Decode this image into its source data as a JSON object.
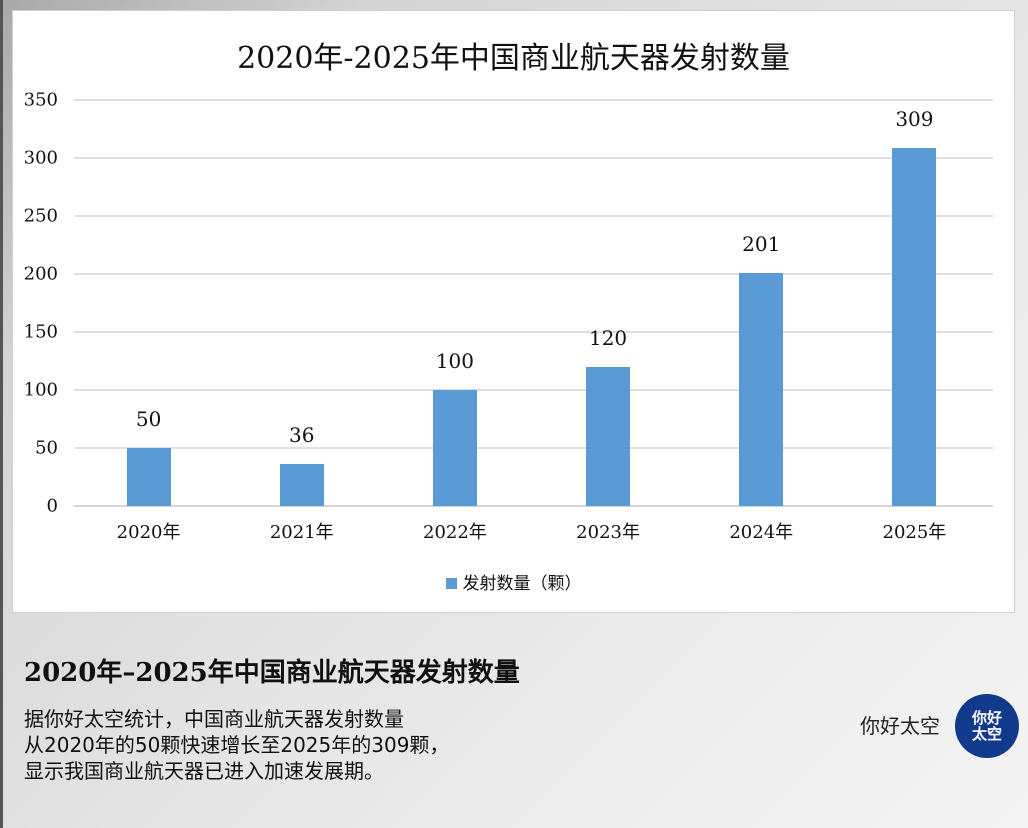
{
  "colors": {
    "bar": "#5b9bd5",
    "gridline": "#e0e0e0",
    "logo_bg": "#123a8c"
  },
  "chart": {
    "title": "2020年-2025年中国商业航天器发射数量",
    "legend_label": "发射数量（颗）"
  },
  "caption": {
    "title": "2020年–2025年中国商业航天器发射数量",
    "lines": [
      "据你好太空统计，中国商业航天器发射数量",
      "从2020年的50颗快速增长至2025年的309颗，",
      "显示我国商业航天器已进入加速发展期。"
    ]
  },
  "brand": {
    "name": "你好太空",
    "logo_line1": "你好",
    "logo_line2": "太空",
    "logo_icon": "nihao-taikong-logo-icon"
  },
  "chart_data": {
    "type": "bar",
    "title": "2020年-2025年中国商业航天器发射数量",
    "categories": [
      "2020年",
      "2021年",
      "2022年",
      "2023年",
      "2024年",
      "2025年"
    ],
    "series": [
      {
        "name": "发射数量（颗）",
        "values": [
          50,
          36,
          100,
          120,
          201,
          309
        ],
        "color": "#5b9bd5"
      }
    ],
    "xlabel": "",
    "ylabel": "",
    "ylim": [
      0,
      350
    ],
    "yticks": [
      0,
      50,
      100,
      150,
      200,
      250,
      300,
      350
    ],
    "grid": true,
    "data_labels": true,
    "legend_position": "bottom"
  }
}
